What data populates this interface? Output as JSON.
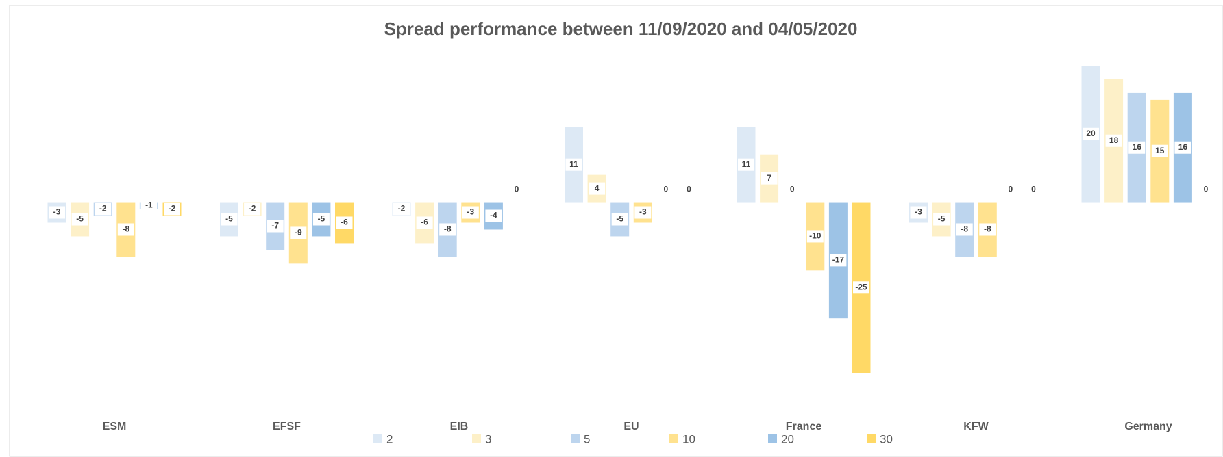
{
  "chart_data": {
    "type": "bar",
    "title": "Spread performance between 11/09/2020 and 04/05/2020",
    "categories": [
      "ESM",
      "EFSF",
      "EIB",
      "EU",
      "France",
      "KFW",
      "Germany"
    ],
    "series": [
      {
        "name": "2",
        "color": "#dde9f5",
        "values": [
          -3,
          -5,
          -2,
          11,
          11,
          -3,
          20
        ]
      },
      {
        "name": "3",
        "color": "#fdf0c8",
        "values": [
          -5,
          -2,
          -6,
          4,
          7,
          -5,
          18
        ]
      },
      {
        "name": "5",
        "color": "#bdd5ee",
        "values": [
          -2,
          -7,
          -8,
          -5,
          0,
          -8,
          16
        ]
      },
      {
        "name": "10",
        "color": "#ffe28f",
        "values": [
          -8,
          -9,
          -3,
          -3,
          -10,
          -8,
          15
        ]
      },
      {
        "name": "20",
        "color": "#9dc3e6",
        "values": [
          -1,
          -5,
          -4,
          0,
          -17,
          0,
          16
        ]
      },
      {
        "name": "30",
        "color": "#ffd966",
        "values": [
          -2,
          -6,
          0,
          0,
          -25,
          0,
          0
        ]
      }
    ],
    "legend": "bottom"
  }
}
